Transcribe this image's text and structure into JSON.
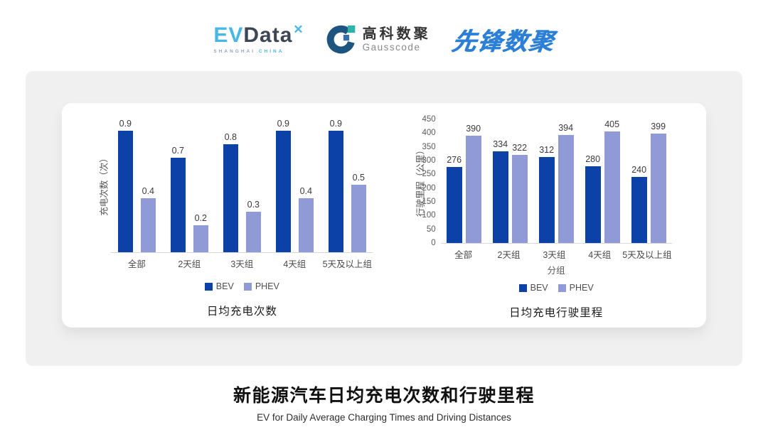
{
  "header": {
    "evdata_logo": {
      "ev": "EV",
      "data": "Data",
      "star": "✕",
      "sub_left": "SHANGHAI",
      "sub_right": "CHINA"
    },
    "gausscode_logo": {
      "cn": "高科数聚",
      "en": "Gausscode"
    },
    "pioneer_logo": {
      "text": "先锋数聚"
    }
  },
  "footer": {
    "title": "新能源汽车日均充电次数和行驶里程",
    "subtitle": "EV for Daily Average Charging Times and Driving Distances"
  },
  "colors": {
    "bev": "#0c42a8",
    "phev": "#8f9ad6",
    "card_gray": "#f0f0f0"
  },
  "chart_data": [
    {
      "type": "bar",
      "title": "日均充电次数",
      "ylabel": "充电次数（次）",
      "xlabel": "",
      "categories": [
        "全部",
        "2天组",
        "3天组",
        "4天组",
        "5天及以上组"
      ],
      "series": [
        {
          "name": "BEV",
          "color": "#0c42a8",
          "values": [
            0.9,
            0.7,
            0.8,
            0.9,
            0.9
          ]
        },
        {
          "name": "PHEV",
          "color": "#8f9ad6",
          "values": [
            0.4,
            0.2,
            0.3,
            0.4,
            0.5
          ]
        }
      ],
      "ylim": [
        0,
        1.0
      ],
      "yticks": [],
      "grid": false,
      "legend_position": "bottom"
    },
    {
      "type": "bar",
      "title": "日均充电行驶里程",
      "ylabel": "行驶里程（公里）",
      "xlabel": "分组",
      "categories": [
        "全部",
        "2天组",
        "3天组",
        "4天组",
        "5天及以上组"
      ],
      "series": [
        {
          "name": "BEV",
          "color": "#0c42a8",
          "values": [
            276,
            334,
            312,
            280,
            240
          ]
        },
        {
          "name": "PHEV",
          "color": "#8f9ad6",
          "values": [
            390,
            322,
            394,
            405,
            399
          ]
        }
      ],
      "ylim": [
        0,
        450
      ],
      "yticks": [
        0,
        50,
        100,
        150,
        200,
        250,
        300,
        350,
        400,
        450
      ],
      "grid": false,
      "legend_position": "bottom"
    }
  ]
}
